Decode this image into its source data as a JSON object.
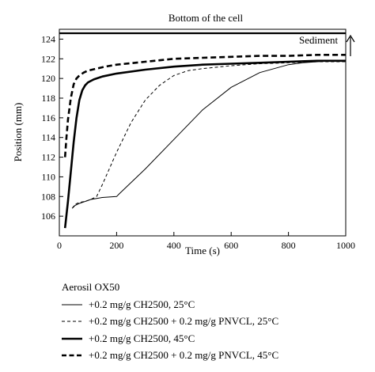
{
  "chart_data": {
    "type": "line",
    "xlabel": "Time (s)",
    "ylabel": "Position (mm)",
    "xlim": [
      0,
      1000
    ],
    "ylim": [
      104,
      125
    ],
    "xticks": [
      0,
      200,
      400,
      600,
      800,
      1000
    ],
    "yticks": [
      106,
      108,
      110,
      112,
      114,
      116,
      118,
      120,
      122,
      124
    ],
    "grid": false,
    "legend_position": "bottom",
    "legend_title": "Aerosil OX50",
    "reference_line": {
      "y": 124.6,
      "label": "Bottom of the cell"
    },
    "annotation": {
      "text": "Sediment",
      "arrow": "up"
    },
    "series": [
      {
        "name": "+0.2 mg/g CH2500, 25°C",
        "style": "thin-solid",
        "x": [
          45,
          55,
          70,
          90,
          110,
          130,
          150,
          200,
          210,
          300,
          400,
          500,
          600,
          700,
          800,
          850,
          900,
          950,
          1000
        ],
        "y": [
          106.8,
          107.1,
          107.3,
          107.5,
          107.7,
          107.8,
          107.9,
          108.0,
          108.3,
          110.8,
          113.8,
          116.8,
          119.1,
          120.6,
          121.4,
          121.6,
          121.7,
          121.8,
          121.8
        ]
      },
      {
        "name": "+0.2 mg/g CH2500 + 0.2 mg/g PNVCL, 25°C",
        "style": "thin-dashed",
        "x": [
          45,
          55,
          70,
          90,
          110,
          130,
          150,
          200,
          250,
          300,
          350,
          400,
          450,
          500,
          600,
          700,
          800,
          900,
          1000
        ],
        "y": [
          106.8,
          107.2,
          107.4,
          107.5,
          107.7,
          108.0,
          109.2,
          112.5,
          115.5,
          117.8,
          119.3,
          120.3,
          120.8,
          121.0,
          121.3,
          121.5,
          121.6,
          121.7,
          121.7
        ]
      },
      {
        "name": "+0.2 mg/g CH2500, 45°C",
        "style": "thick-solid",
        "x": [
          20,
          30,
          40,
          50,
          60,
          70,
          80,
          90,
          100,
          120,
          150,
          200,
          300,
          400,
          500,
          600,
          700,
          800,
          900,
          1000
        ],
        "y": [
          104.8,
          107.5,
          110.5,
          113.5,
          116.0,
          117.8,
          118.8,
          119.3,
          119.6,
          119.9,
          120.2,
          120.5,
          120.9,
          121.2,
          121.4,
          121.5,
          121.6,
          121.7,
          121.8,
          121.8
        ]
      },
      {
        "name": "+0.2 mg/g CH2500 + 0.2 mg/g PNVCL, 45°C",
        "style": "thick-dashed",
        "x": [
          20,
          25,
          30,
          40,
          50,
          60,
          70,
          85,
          100,
          130,
          160,
          200,
          300,
          400,
          500,
          600,
          700,
          800,
          900,
          1000
        ],
        "y": [
          112.0,
          114.0,
          115.8,
          118.0,
          119.4,
          120.0,
          120.3,
          120.6,
          120.8,
          121.0,
          121.2,
          121.4,
          121.7,
          122.0,
          122.1,
          122.2,
          122.3,
          122.3,
          122.4,
          122.4
        ]
      }
    ]
  }
}
